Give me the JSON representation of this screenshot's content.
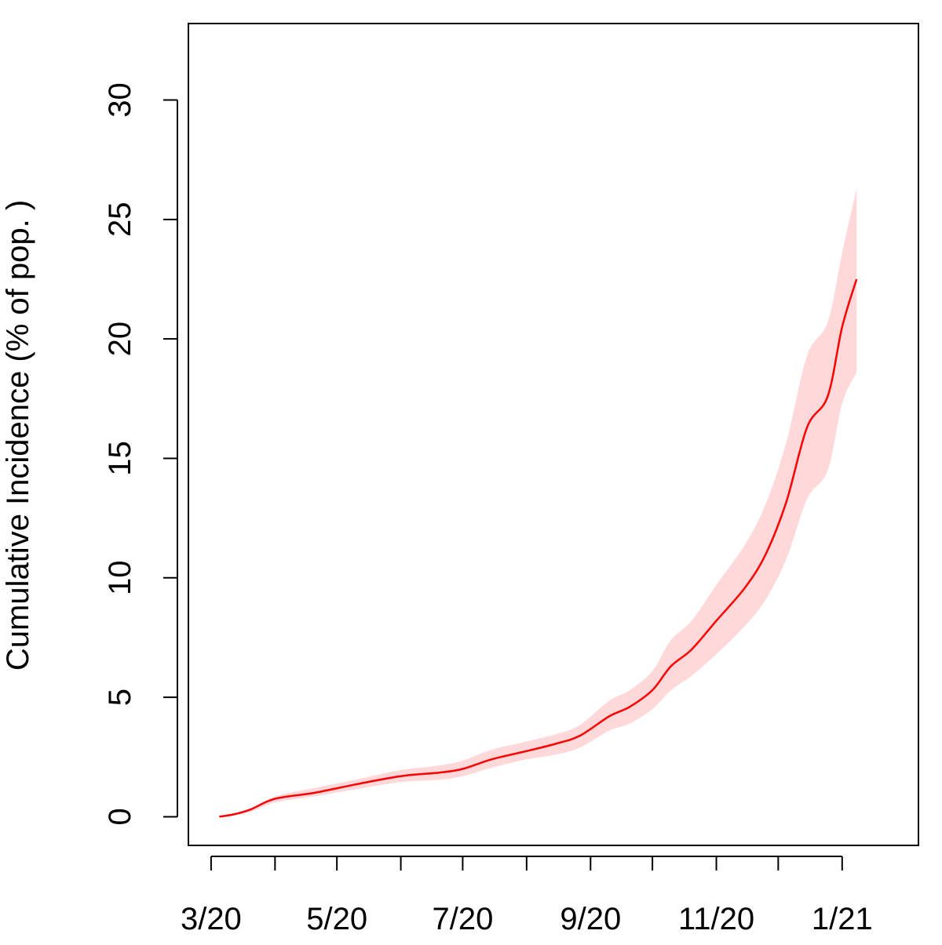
{
  "chart_data": {
    "type": "line",
    "title": "",
    "xlabel": "",
    "ylabel": "Cumulative Incidence (% of pop. )",
    "xlim": [
      "2020-02-19",
      "2021-02-07"
    ],
    "ylim": [
      -1.2,
      33.2
    ],
    "grid": false,
    "legend": "none",
    "x_ticks": [
      "2020-03-01",
      "2020-04-01",
      "2020-05-01",
      "2020-06-01",
      "2020-07-01",
      "2020-08-01",
      "2020-09-01",
      "2020-10-01",
      "2020-11-01",
      "2020-12-01",
      "2021-01-01"
    ],
    "x_tick_labels": [
      {
        "date": "2020-03-01",
        "label": "3/20"
      },
      {
        "date": "2020-05-01",
        "label": "5/20"
      },
      {
        "date": "2020-07-01",
        "label": "7/20"
      },
      {
        "date": "2020-09-01",
        "label": "9/20"
      },
      {
        "date": "2020-11-01",
        "label": "11/20"
      },
      {
        "date": "2021-01-01",
        "label": "1/21"
      }
    ],
    "y_ticks": [
      0,
      5,
      10,
      15,
      20,
      25,
      30
    ],
    "y_tick_labels": [
      "0",
      "5",
      "10",
      "15",
      "20",
      "25",
      "30"
    ],
    "colors": {
      "line": "#ff0000",
      "band": "#ffd8da",
      "axis": "#000000"
    },
    "series": [
      {
        "x": [
          "2020-03-05",
          "2020-03-12",
          "2020-03-20",
          "2020-04-01",
          "2020-04-20",
          "2020-05-10",
          "2020-06-01",
          "2020-06-20",
          "2020-07-01",
          "2020-07-15",
          "2020-08-01",
          "2020-08-15",
          "2020-08-27",
          "2020-09-10",
          "2020-09-20",
          "2020-10-01",
          "2020-10-10",
          "2020-10-20",
          "2020-11-01",
          "2020-11-15",
          "2020-11-25",
          "2020-12-05",
          "2020-12-15",
          "2020-12-25",
          "2021-01-01",
          "2021-01-08"
        ],
        "y": [
          0.0,
          0.1,
          0.3,
          0.75,
          1.0,
          1.35,
          1.7,
          1.85,
          2.0,
          2.4,
          2.75,
          3.05,
          3.4,
          4.2,
          4.6,
          5.3,
          6.3,
          7.0,
          8.2,
          9.6,
          11.0,
          13.2,
          16.3,
          17.6,
          20.5,
          22.5
        ],
        "lower": [
          0.0,
          0.05,
          0.2,
          0.6,
          0.85,
          1.15,
          1.45,
          1.55,
          1.7,
          2.05,
          2.4,
          2.6,
          2.9,
          3.6,
          3.9,
          4.5,
          5.3,
          5.9,
          6.8,
          8.0,
          9.1,
          10.8,
          13.3,
          14.5,
          17.3,
          18.6
        ],
        "upper": [
          0.0,
          0.1,
          0.35,
          0.85,
          1.2,
          1.55,
          1.95,
          2.15,
          2.35,
          2.8,
          3.15,
          3.45,
          3.85,
          4.85,
          5.3,
          6.1,
          7.4,
          8.2,
          9.7,
          11.4,
          13.1,
          15.7,
          19.3,
          20.7,
          23.6,
          26.3
        ]
      }
    ]
  }
}
